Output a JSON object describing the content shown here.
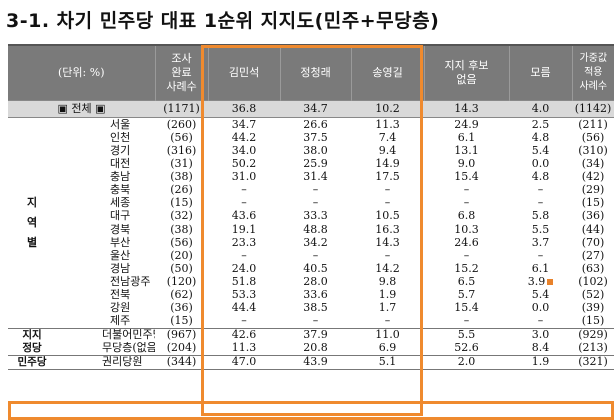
{
  "title": "3-1. 차기 민주당 대표 1순위 지지도(민주+무당층)",
  "header": {
    "unit": "(단위: %)",
    "n_raw": "조사\n완료\n사례수",
    "c1": "김민석",
    "c2": "정청래",
    "c3": "송영길",
    "none": "지지 후보\n없음",
    "dk": "모름",
    "n_w": "가중값\n적용\n사례수"
  },
  "total": {
    "label": "▣ 전체 ▣",
    "n": "(1171)",
    "v": [
      "36.8",
      "34.7",
      "10.2",
      "14.3",
      "4.0"
    ],
    "nw": "(1142)"
  },
  "group_region": "지\n역\n별",
  "group_party": "지지\n정당",
  "group_dem": "민주당",
  "rows": [
    {
      "name": "서울",
      "n": "(260)",
      "v": [
        "34.7",
        "26.6",
        "11.3",
        "24.9",
        "2.5"
      ],
      "nw": "(211)"
    },
    {
      "name": "인천",
      "n": "(56)",
      "v": [
        "44.2",
        "37.5",
        "7.4",
        "6.1",
        "4.8"
      ],
      "nw": "(56)"
    },
    {
      "name": "경기",
      "n": "(316)",
      "v": [
        "34.0",
        "38.0",
        "9.4",
        "13.1",
        "5.4"
      ],
      "nw": "(310)"
    },
    {
      "name": "대전",
      "n": "(31)",
      "v": [
        "50.2",
        "25.9",
        "14.9",
        "9.0",
        "0.0"
      ],
      "nw": "(34)"
    },
    {
      "name": "충남",
      "n": "(38)",
      "v": [
        "31.0",
        "31.4",
        "17.5",
        "15.4",
        "4.8"
      ],
      "nw": "(42)"
    },
    {
      "name": "충북",
      "n": "(26)",
      "v": [
        "–",
        "–",
        "–",
        "–",
        "–"
      ],
      "nw": "(29)"
    },
    {
      "name": "세종",
      "n": "(15)",
      "v": [
        "–",
        "–",
        "–",
        "–",
        "–"
      ],
      "nw": "(15)"
    },
    {
      "name": "대구",
      "n": "(32)",
      "v": [
        "43.6",
        "33.3",
        "10.5",
        "6.8",
        "5.8"
      ],
      "nw": "(36)"
    },
    {
      "name": "경북",
      "n": "(38)",
      "v": [
        "19.1",
        "48.8",
        "16.3",
        "10.3",
        "5.5"
      ],
      "nw": "(44)"
    },
    {
      "name": "부산",
      "n": "(56)",
      "v": [
        "23.3",
        "34.2",
        "14.3",
        "24.6",
        "3.7"
      ],
      "nw": "(70)"
    },
    {
      "name": "울산",
      "n": "(20)",
      "v": [
        "–",
        "–",
        "–",
        "–",
        "–"
      ],
      "nw": "(27)"
    },
    {
      "name": "경남",
      "n": "(50)",
      "v": [
        "24.0",
        "40.5",
        "14.2",
        "15.2",
        "6.1"
      ],
      "nw": "(63)"
    },
    {
      "name": "전남광주",
      "n": "(120)",
      "v": [
        "51.8",
        "28.0",
        "9.8",
        "6.5",
        "3.9"
      ],
      "nw": "(102)"
    },
    {
      "name": "전북",
      "n": "(62)",
      "v": [
        "53.3",
        "33.6",
        "1.9",
        "5.7",
        "5.4"
      ],
      "nw": "(52)"
    },
    {
      "name": "강원",
      "n": "(36)",
      "v": [
        "44.4",
        "38.5",
        "1.7",
        "15.4",
        "0.0"
      ],
      "nw": "(39)"
    },
    {
      "name": "제주",
      "n": "(15)",
      "v": [
        "–",
        "–",
        "–",
        "–",
        "–"
      ],
      "nw": "(15)"
    }
  ],
  "party_rows": [
    {
      "name": "더불어민주당",
      "n": "(967)",
      "v": [
        "42.6",
        "37.9",
        "11.0",
        "5.5",
        "3.0"
      ],
      "nw": "(929)"
    },
    {
      "name": "무당층(없음+모름)",
      "n": "(204)",
      "v": [
        "11.3",
        "20.8",
        "6.9",
        "52.6",
        "8.4"
      ],
      "nw": "(213)"
    }
  ],
  "dem_row": {
    "name": "권리당원",
    "n": "(344)",
    "v": [
      "47.0",
      "43.9",
      "5.1",
      "2.0",
      "1.9"
    ],
    "nw": "(321)"
  },
  "highlight_color": "#ef8a2e"
}
